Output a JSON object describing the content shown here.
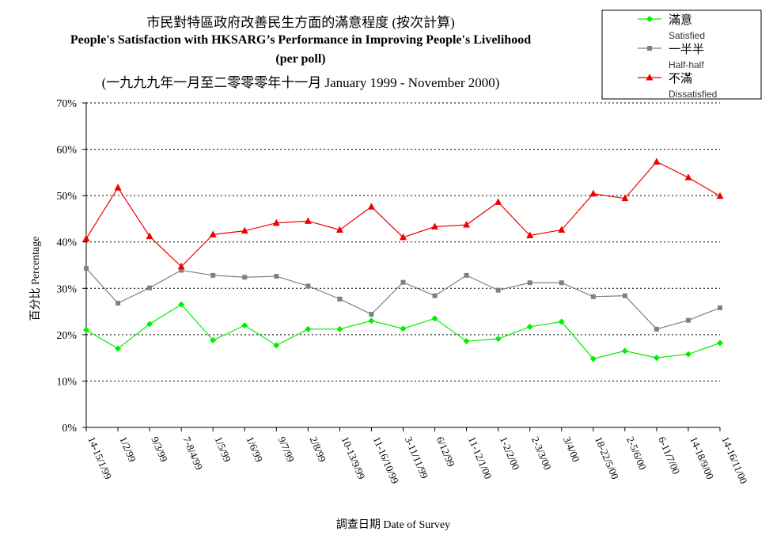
{
  "chart_data": {
    "type": "line",
    "title_lines": [
      "市民對特區政府改善民生方面的滿意程度 (按次計算)",
      "People's Satisfaction with HKSARG’s Performance in Improving People's Livelihood",
      "(per poll)",
      "(一九九九年一月至二零零零年十一月 January 1999 - November 2000)"
    ],
    "xlabel": "調查日期 Date of Survey",
    "ylabel": "百分比 Percentage",
    "ylim": [
      0,
      70
    ],
    "yticks": [
      0,
      10,
      20,
      30,
      40,
      50,
      60,
      70
    ],
    "ytick_labels": [
      "0%",
      "10%",
      "20%",
      "30%",
      "40%",
      "50%",
      "60%",
      "70%"
    ],
    "grid": true,
    "legend_position": "top-right",
    "categories": [
      "14-15/1/99",
      "1/2/99",
      "9/3/99",
      "7-8/4/99",
      "1/5/99",
      "1/6/99",
      "9/7/99",
      "2/8/99",
      "10-13/9/99",
      "11-16/10/99",
      "3-11/11/99",
      "6/12/99",
      "11-12/1/00",
      "1-2/2/00",
      "2-3/3/00",
      "3/4/00",
      "18-22/5/00",
      "2-5/6/00",
      "6-11/7/00",
      "14-18/9/00",
      "14-16/11/00"
    ],
    "series": [
      {
        "name": "滿意",
        "name_en": "Satisfied",
        "color": "#00ee00",
        "marker": "diamond",
        "values": [
          21.0,
          17.0,
          22.3,
          26.5,
          18.8,
          22.0,
          17.7,
          21.2,
          21.2,
          23.0,
          21.3,
          23.5,
          18.6,
          19.1,
          21.7,
          22.8,
          14.8,
          16.5,
          15.0,
          15.8,
          18.2
        ]
      },
      {
        "name": "一半半",
        "name_en": "Half-half",
        "color": "#808080",
        "marker": "square",
        "values": [
          34.3,
          26.8,
          30.1,
          33.9,
          32.8,
          32.4,
          32.6,
          30.5,
          27.7,
          24.4,
          31.3,
          28.4,
          32.8,
          29.6,
          31.2,
          31.2,
          28.2,
          28.4,
          21.2,
          23.1,
          25.8
        ]
      },
      {
        "name": "不滿",
        "name_en": "Dissatisfied",
        "color": "#ee0000",
        "marker": "triangle",
        "values": [
          40.7,
          51.7,
          41.2,
          34.7,
          41.6,
          42.4,
          44.1,
          44.5,
          42.6,
          47.6,
          41.0,
          43.3,
          43.7,
          48.6,
          41.4,
          42.6,
          50.4,
          49.4,
          57.3,
          53.9,
          49.9
        ]
      }
    ]
  }
}
